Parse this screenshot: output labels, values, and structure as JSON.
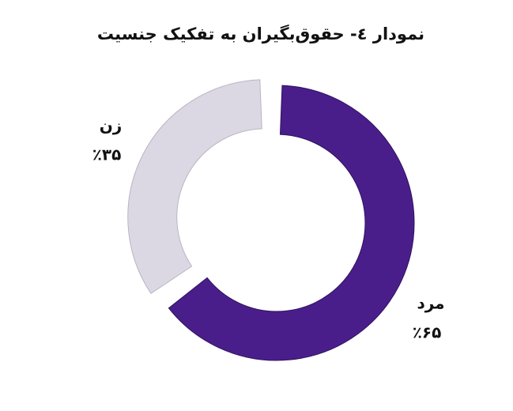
{
  "chart_data": {
    "type": "pie",
    "title": "نمودار ٤- حقوق‌بگیران به تفکیک جنسیت",
    "categories": [
      "مرد",
      "زن"
    ],
    "values": [
      65,
      35
    ],
    "value_labels": [
      "٪۶۵",
      "٪۳۵"
    ],
    "colors": [
      "#4a1e8a",
      "#dcd8e3"
    ]
  }
}
